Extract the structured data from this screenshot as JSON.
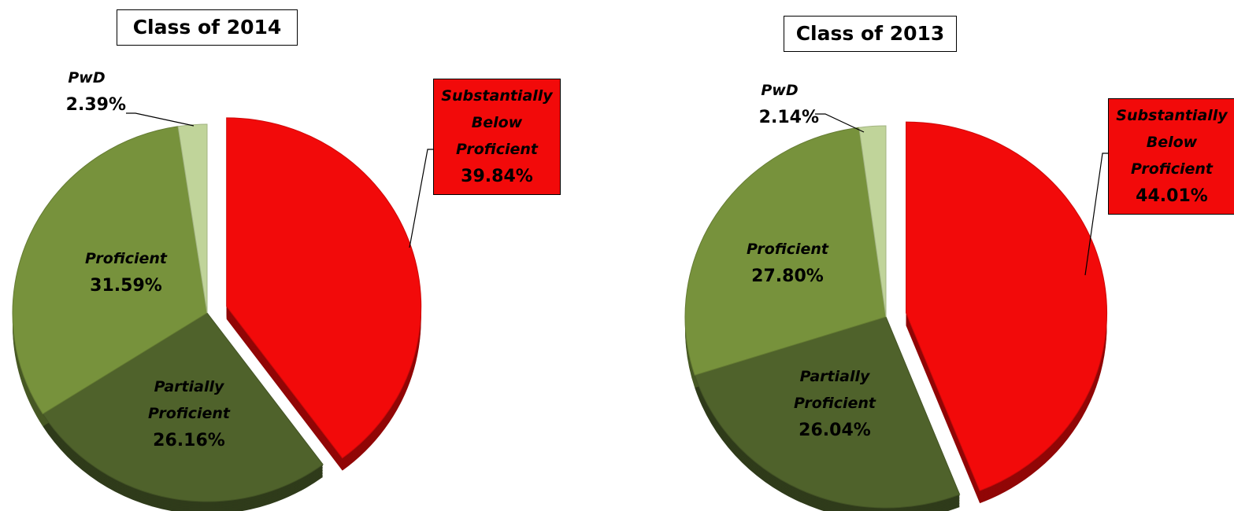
{
  "chart_data": [
    {
      "type": "pie",
      "title": "Class of 2014",
      "categories": [
        "Substantially Below Proficient",
        "Partially Proficient",
        "Proficient",
        "PwD"
      ],
      "values": [
        39.84,
        26.16,
        31.59,
        2.39
      ],
      "value_labels": [
        "39.84%",
        "26.16%",
        "31.59%",
        "2.39%"
      ],
      "colors": [
        "#f20a0a",
        "#4f622b",
        "#77923c",
        "#c0d49a"
      ]
    },
    {
      "type": "pie",
      "title": "Class of 2013",
      "categories": [
        "Substantially Below Proficient",
        "Partially Proficient",
        "Proficient",
        "PwD"
      ],
      "values": [
        44.01,
        26.04,
        27.8,
        2.14
      ],
      "value_labels": [
        "44.01%",
        "26.04%",
        "27.80%",
        "2.14%"
      ],
      "colors": [
        "#f20a0a",
        "#4f622b",
        "#77923c",
        "#c0d49a"
      ]
    }
  ]
}
